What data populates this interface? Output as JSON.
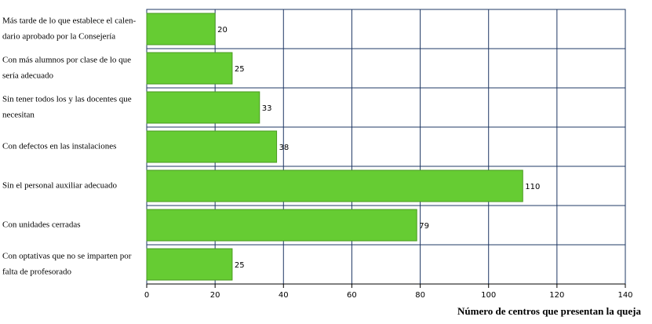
{
  "chart_data": {
    "type": "hbar",
    "x_label": "Número de centros que presentan la queja",
    "categories": [
      [
        "Más tarde de lo que establece el calen-",
        "dario aprobado por la Consejería"
      ],
      [
        "Con más alumnos por clase de lo que",
        "sería adecuado"
      ],
      [
        "Sin tener todos los y las docentes que",
        "necesitan"
      ],
      [
        "Con defectos en las instalaciones"
      ],
      [
        "Sin el personal auxiliar adecuado"
      ],
      [
        "Con unidades cerradas"
      ],
      [
        "Con optativas que no se imparten por",
        "falta de profesorado"
      ]
    ],
    "values": [
      20,
      25,
      33,
      38,
      110,
      79,
      25
    ],
    "color": "#66cc33",
    "xlim": [
      0,
      140
    ],
    "xticks": [
      0,
      20,
      40,
      60,
      80,
      100,
      120,
      140
    ],
    "grid": true
  }
}
